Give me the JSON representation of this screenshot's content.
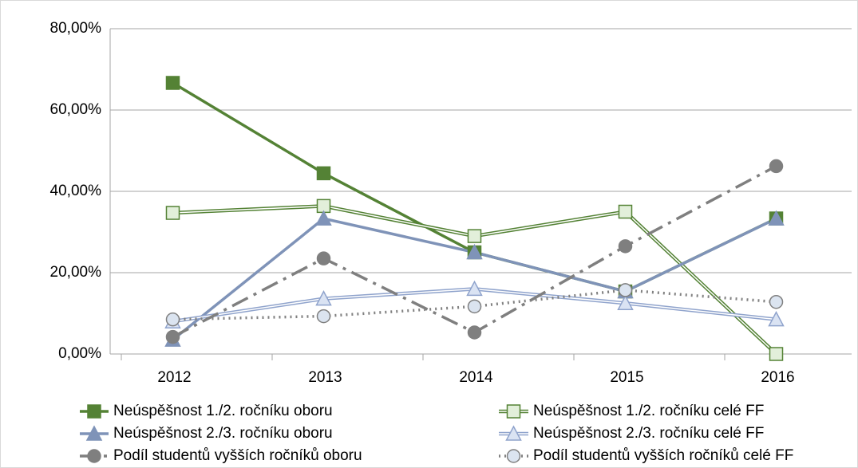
{
  "chart_data": {
    "type": "line",
    "categories": [
      "2012",
      "2013",
      "2014",
      "2015",
      "2016"
    ],
    "ylim": [
      0,
      80
    ],
    "yticks": [
      {
        "value": 0,
        "label": "0,00%"
      },
      {
        "value": 20,
        "label": "20,00%"
      },
      {
        "value": 40,
        "label": "40,00%"
      },
      {
        "value": 60,
        "label": "60,00%"
      },
      {
        "value": 80,
        "label": "80,00%"
      }
    ],
    "grid": true,
    "legend": "bottom",
    "series": [
      {
        "name": "Neúspěšnost 1./2. ročníku oboru",
        "color": "#548235",
        "marker": "square",
        "filled": true,
        "style": "solid",
        "values": [
          66.67,
          44.44,
          25,
          15.38,
          33.33
        ]
      },
      {
        "name": "Neúspěšnost 1./2. ročníku celé FF",
        "color": "#548235",
        "marker": "square",
        "filled": false,
        "style": "double",
        "values": [
          34.7,
          36.4,
          29.0,
          35.0,
          0
        ]
      },
      {
        "name": "Neúspěšnost 2./3. ročníku oboru",
        "color": "#7f93b8",
        "marker": "triangle",
        "filled": true,
        "style": "solid",
        "values": [
          3.5,
          33.3,
          25.0,
          15.4,
          33.3
        ]
      },
      {
        "name": "Neúspěšnost 2./3. ročníku celé FF",
        "color": "#8fa3cc",
        "marker": "triangle",
        "filled": false,
        "style": "double",
        "values": [
          8.0,
          13.6,
          16.0,
          12.5,
          8.5
        ]
      },
      {
        "name": "Podíl studentů vyšších ročníků oboru",
        "color": "#7f7f7f",
        "marker": "circle",
        "filled": true,
        "style": "dashdot",
        "values": [
          4.2,
          23.5,
          5.3,
          26.5,
          46.2
        ]
      },
      {
        "name": "Podíl studentů vyšších ročníků celé FF",
        "color": "#808080",
        "marker": "circle",
        "filled": false,
        "style": "dotted",
        "values": [
          8.5,
          9.3,
          11.7,
          15.7,
          12.8
        ]
      }
    ]
  }
}
